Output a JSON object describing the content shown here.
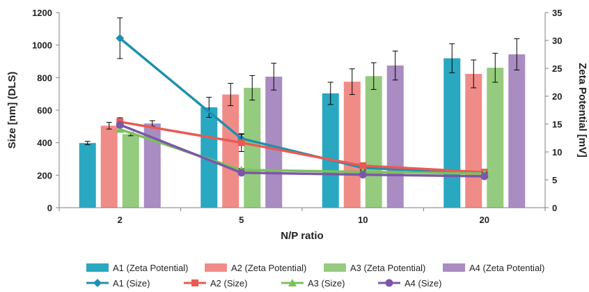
{
  "chart_data": {
    "type": "bar",
    "title": "",
    "xlabel": "N/P ratio",
    "ylabel_left": "Size [nm] (DLS)",
    "ylabel_right": "Zeta Potential [mV]",
    "categories": [
      "2",
      "5",
      "10",
      "20"
    ],
    "y_left": {
      "min": 0,
      "max": 1200,
      "ticks": [
        "0",
        "200",
        "400",
        "600",
        "800",
        "1000",
        "1200"
      ]
    },
    "y_right": {
      "min": 0,
      "max": 35,
      "ticks": [
        "0",
        "5",
        "10",
        "15",
        "20",
        "25",
        "30",
        "35"
      ]
    },
    "grid": false,
    "legend_position": "bottom",
    "bar_series": [
      {
        "name": "A1 (Zeta Potential)",
        "color": "#2aa7c1",
        "values": [
          11.6,
          18.0,
          20.5,
          26.8
        ],
        "errors": [
          0.3,
          1.8,
          2.0,
          2.6
        ]
      },
      {
        "name": "A2 (Zeta Potential)",
        "color": "#f08c88",
        "values": [
          14.7,
          20.3,
          22.6,
          24.0
        ],
        "errors": [
          0.6,
          2.0,
          2.3,
          2.5
        ]
      },
      {
        "name": "A3 (Zeta Potential)",
        "color": "#95cb7e",
        "values": [
          13.2,
          21.5,
          23.6,
          25.1
        ],
        "errors": [
          0.3,
          2.2,
          2.4,
          2.6
        ]
      },
      {
        "name": "A4 (Zeta Potential)",
        "color": "#a98cc1",
        "values": [
          15.1,
          23.5,
          25.5,
          27.5
        ],
        "errors": [
          0.5,
          2.4,
          2.6,
          2.8
        ]
      }
    ],
    "line_series": [
      {
        "name": "A1 (Size)",
        "color": "#1f8fb0",
        "marker": "diamond",
        "values": [
          1042,
          425,
          245,
          210
        ],
        "errors": [
          125,
          25,
          12,
          8
        ]
      },
      {
        "name": "A2 (Size)",
        "color": "#e85a54",
        "marker": "square",
        "values": [
          528,
          400,
          258,
          218
        ],
        "errors": [
          25,
          55,
          14,
          8
        ]
      },
      {
        "name": "A3 (Size)",
        "color": "#7cc15c",
        "marker": "triangle",
        "values": [
          482,
          232,
          220,
          210
        ],
        "errors": [
          10,
          8,
          8,
          6
        ]
      },
      {
        "name": "A4 (Size)",
        "color": "#7c57a8",
        "marker": "circle",
        "values": [
          510,
          215,
          203,
          193
        ],
        "errors": [
          15,
          8,
          8,
          6
        ]
      }
    ]
  }
}
